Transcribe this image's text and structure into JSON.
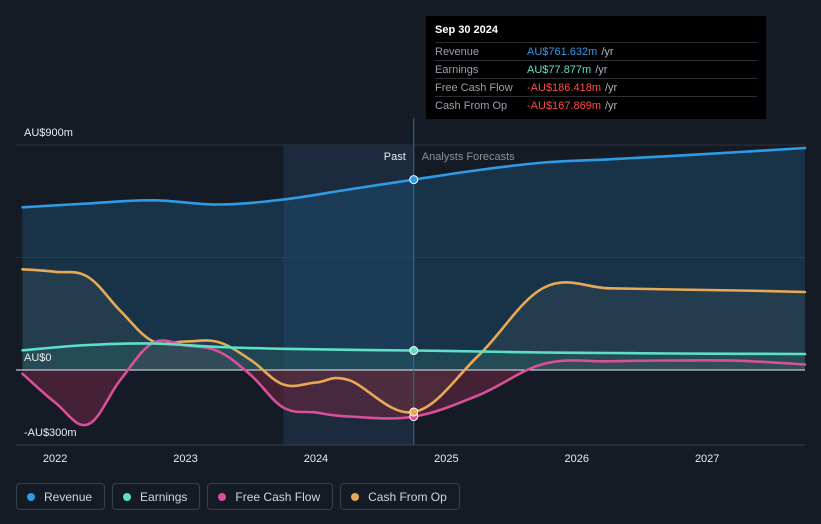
{
  "tooltip": {
    "date": "Sep 30 2024",
    "rows": [
      {
        "label": "Revenue",
        "value": "AU$761.632m",
        "unit": "/yr",
        "color": "#2f9be6"
      },
      {
        "label": "Earnings",
        "value": "AU$77.877m",
        "unit": "/yr",
        "color": "#5ee0c8"
      },
      {
        "label": "Free Cash Flow",
        "value": "-AU$186.418m",
        "unit": "/yr",
        "color": "#ff4d4d"
      },
      {
        "label": "Cash From Op",
        "value": "-AU$167.869m",
        "unit": "/yr",
        "color": "#ff4d4d"
      }
    ]
  },
  "legend": [
    {
      "label": "Revenue",
      "color": "#2f9be6"
    },
    {
      "label": "Earnings",
      "color": "#5ee0c8"
    },
    {
      "label": "Free Cash Flow",
      "color": "#d9509a"
    },
    {
      "label": "Cash From Op",
      "color": "#e8a956"
    }
  ],
  "chart_data": {
    "type": "line",
    "y_unit": "AU$m",
    "ylim": [
      -300,
      900
    ],
    "y_tick_labels": [
      {
        "value": 900,
        "label": "AU$900m"
      },
      {
        "value": 0,
        "label": "AU$0"
      },
      {
        "value": -300,
        "label": "-AU$300m"
      }
    ],
    "xlim": [
      2021.7,
      2027.75
    ],
    "x_ticks": [
      2022,
      2023,
      2024,
      2025,
      2026,
      2027
    ],
    "past_start": 2023.75,
    "divider_x": 2024.75,
    "past_label": "Past",
    "forecast_label": "Analysts Forecasts",
    "series": [
      {
        "name": "Revenue",
        "color": "#2f9be6",
        "fill": "#1d4f76",
        "points": [
          [
            2021.75,
            651
          ],
          [
            2022.25,
            666
          ],
          [
            2022.75,
            679
          ],
          [
            2023.25,
            662
          ],
          [
            2023.75,
            682
          ],
          [
            2024.25,
            722
          ],
          [
            2024.75,
            761.6
          ],
          [
            2025.25,
            800
          ],
          [
            2025.75,
            830
          ],
          [
            2026.25,
            843
          ],
          [
            2026.75,
            857
          ],
          [
            2027.25,
            872
          ],
          [
            2027.75,
            888
          ]
        ]
      },
      {
        "name": "Earnings",
        "color": "#5ee0c8",
        "fill": "#2a6b63",
        "points": [
          [
            2021.75,
            79
          ],
          [
            2022.25,
            100
          ],
          [
            2022.75,
            106
          ],
          [
            2023.25,
            92
          ],
          [
            2023.75,
            85
          ],
          [
            2024.25,
            81
          ],
          [
            2024.75,
            77.9
          ],
          [
            2025.25,
            74
          ],
          [
            2025.75,
            70
          ],
          [
            2026.25,
            68
          ],
          [
            2026.75,
            66
          ],
          [
            2027.25,
            65
          ],
          [
            2027.75,
            64
          ]
        ]
      },
      {
        "name": "Free Cash Flow",
        "color": "#d9509a",
        "fill": "#6b2741",
        "points": [
          [
            2021.75,
            -15
          ],
          [
            2022.0,
            -130
          ],
          [
            2022.25,
            -218
          ],
          [
            2022.5,
            -40
          ],
          [
            2022.75,
            108
          ],
          [
            2023.0,
            98
          ],
          [
            2023.25,
            75
          ],
          [
            2023.5,
            -20
          ],
          [
            2023.75,
            -150
          ],
          [
            2024.0,
            -170
          ],
          [
            2024.25,
            -186
          ],
          [
            2024.75,
            -186.4
          ],
          [
            2025.25,
            -100
          ],
          [
            2025.75,
            25
          ],
          [
            2026.25,
            35
          ],
          [
            2026.75,
            38
          ],
          [
            2027.25,
            37
          ],
          [
            2027.75,
            22
          ]
        ]
      },
      {
        "name": "Cash From Op",
        "color": "#e8a956",
        "fill": "#3a3f3a",
        "points": [
          [
            2021.75,
            403
          ],
          [
            2022.0,
            393
          ],
          [
            2022.25,
            373
          ],
          [
            2022.5,
            237
          ],
          [
            2022.75,
            115
          ],
          [
            2023.0,
            114
          ],
          [
            2023.25,
            112
          ],
          [
            2023.5,
            40
          ],
          [
            2023.75,
            -58
          ],
          [
            2024.0,
            -50
          ],
          [
            2024.25,
            -40
          ],
          [
            2024.75,
            -167.9
          ],
          [
            2025.25,
            60
          ],
          [
            2025.75,
            330
          ],
          [
            2026.25,
            327
          ],
          [
            2026.75,
            322
          ],
          [
            2027.25,
            318
          ],
          [
            2027.75,
            312
          ]
        ]
      }
    ]
  }
}
